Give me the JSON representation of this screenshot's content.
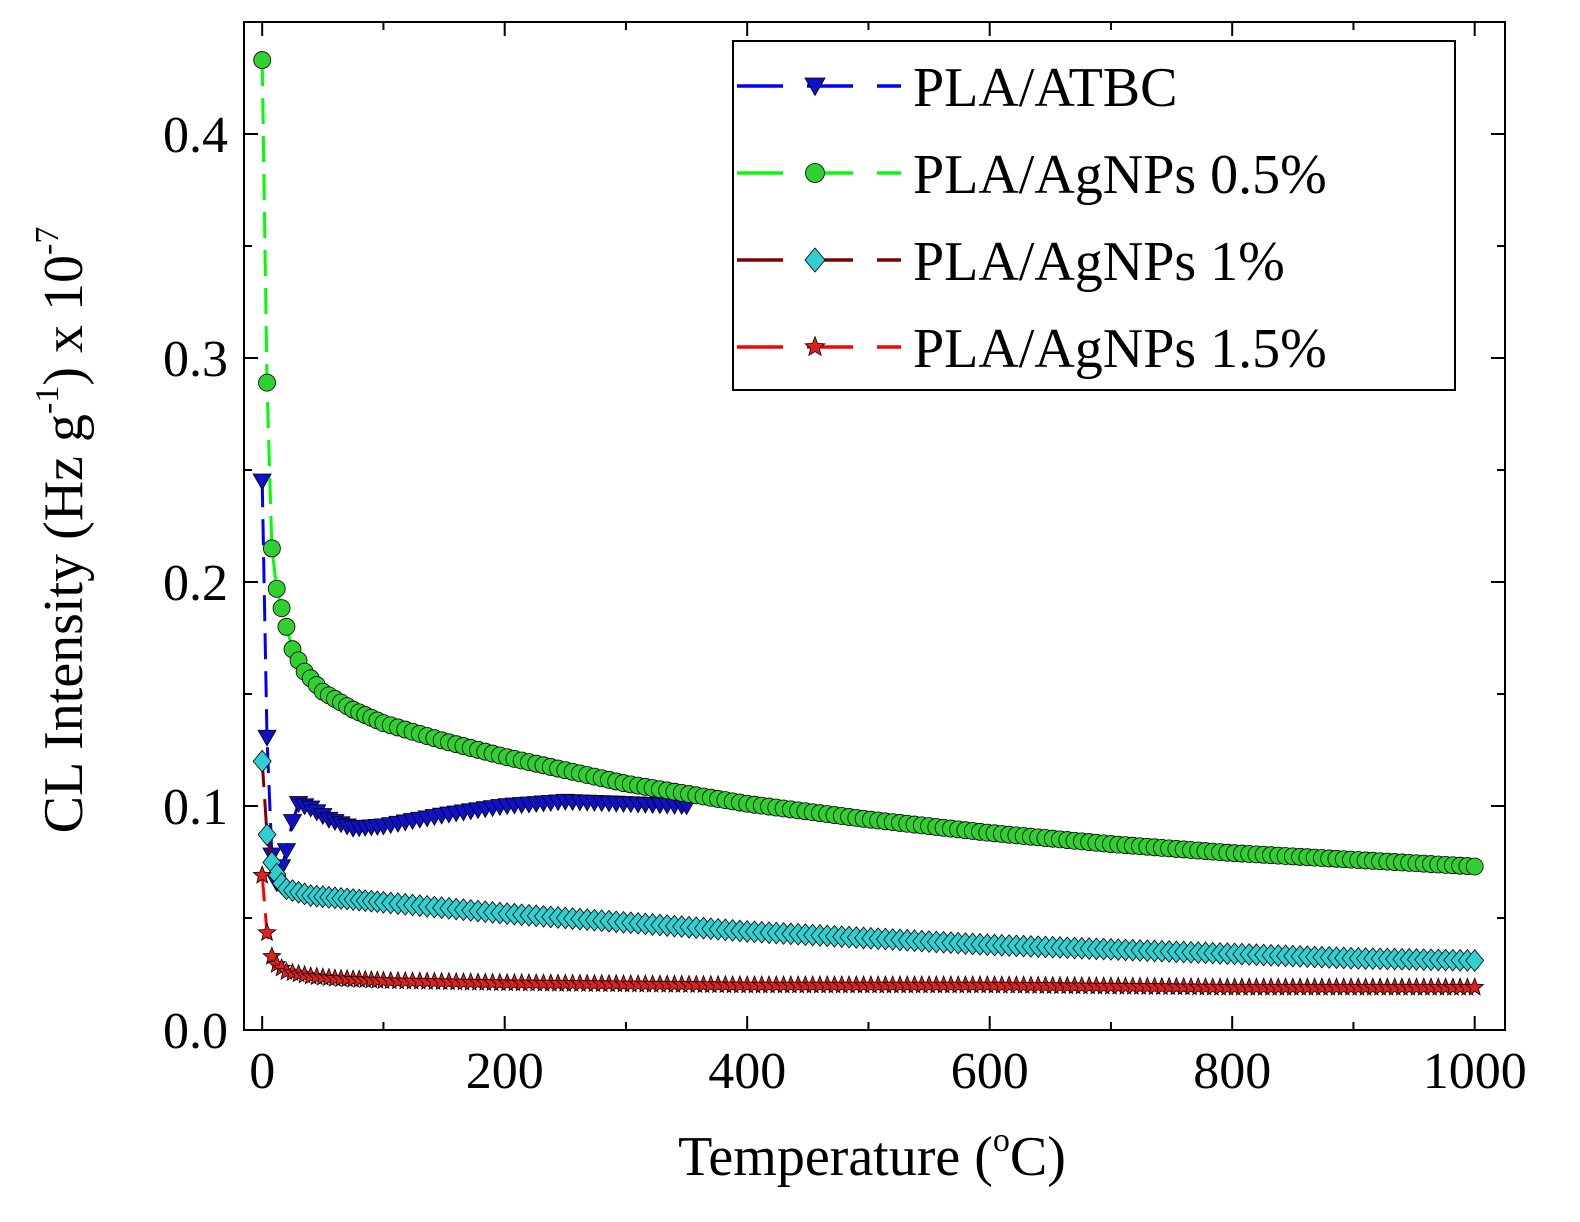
{
  "chart_data": {
    "type": "scatter",
    "title": "",
    "xlabel": {
      "main": "Temperature (",
      "sup": "o",
      "tail": "C)"
    },
    "ylabel": {
      "a": "CL Intensity (Hz g",
      "sup1": "-1",
      "b": ") x 10",
      "sup2": "-7"
    },
    "xlim": [
      -15,
      1025
    ],
    "ylim": [
      0.0,
      0.45
    ],
    "xticks": [
      0,
      200,
      400,
      600,
      800,
      1000
    ],
    "xtick_labels": [
      "0",
      "200",
      "400",
      "600",
      "800",
      "1000"
    ],
    "yticks": [
      0.0,
      0.1,
      0.2,
      0.3,
      0.4
    ],
    "ytick_labels": [
      "0.0",
      "0.1",
      "0.2",
      "0.3",
      "0.4"
    ],
    "legend_position": "top-right",
    "grid": false,
    "series": [
      {
        "name": "PLA/ATBC",
        "marker": "triangle-down",
        "marker_color": "#1010c8",
        "line_color": "#0000ff",
        "x_range": [
          0,
          350
        ],
        "anchors": [
          [
            0,
            0.245
          ],
          [
            5,
            0.102
          ],
          [
            10,
            0.062
          ],
          [
            20,
            0.08
          ],
          [
            25,
            0.093
          ],
          [
            30,
            0.101
          ],
          [
            40,
            0.099
          ],
          [
            55,
            0.094
          ],
          [
            75,
            0.09
          ],
          [
            100,
            0.091
          ],
          [
            150,
            0.096
          ],
          [
            200,
            0.1
          ],
          [
            250,
            0.102
          ],
          [
            300,
            0.101
          ],
          [
            350,
            0.1
          ]
        ]
      },
      {
        "name": "PLA/AgNPs 0.5%",
        "marker": "circle",
        "marker_color": "#30d030",
        "line_color": "#00ff00",
        "x_range": [
          0,
          1000
        ],
        "anchors": [
          [
            0,
            0.433
          ],
          [
            5,
            0.253
          ],
          [
            8,
            0.215
          ],
          [
            12,
            0.197
          ],
          [
            18,
            0.184
          ],
          [
            25,
            0.17
          ],
          [
            35,
            0.16
          ],
          [
            50,
            0.151
          ],
          [
            75,
            0.143
          ],
          [
            100,
            0.137
          ],
          [
            150,
            0.129
          ],
          [
            200,
            0.122
          ],
          [
            300,
            0.11
          ],
          [
            400,
            0.101
          ],
          [
            500,
            0.094
          ],
          [
            600,
            0.088
          ],
          [
            700,
            0.083
          ],
          [
            800,
            0.079
          ],
          [
            900,
            0.076
          ],
          [
            1000,
            0.073
          ]
        ]
      },
      {
        "name": "PLA/AgNPs 1%",
        "marker": "diamond",
        "marker_color": "#30d0d0",
        "line_color": "#800000",
        "x_range": [
          0,
          1000
        ],
        "anchors": [
          [
            0,
            0.12
          ],
          [
            5,
            0.079
          ],
          [
            10,
            0.072
          ],
          [
            15,
            0.066
          ],
          [
            20,
            0.063
          ],
          [
            40,
            0.06
          ],
          [
            60,
            0.059
          ],
          [
            100,
            0.057
          ],
          [
            200,
            0.052
          ],
          [
            300,
            0.048
          ],
          [
            400,
            0.044
          ],
          [
            500,
            0.041
          ],
          [
            600,
            0.038
          ],
          [
            700,
            0.036
          ],
          [
            800,
            0.034
          ],
          [
            900,
            0.032
          ],
          [
            1000,
            0.031
          ]
        ]
      },
      {
        "name": "PLA/AgNPs 1.5%",
        "marker": "star",
        "marker_color": "#e02020",
        "line_color": "#ff0000",
        "x_range": [
          0,
          1000
        ],
        "anchors": [
          [
            0,
            0.069
          ],
          [
            5,
            0.037
          ],
          [
            10,
            0.03
          ],
          [
            20,
            0.026
          ],
          [
            40,
            0.024
          ],
          [
            60,
            0.023
          ],
          [
            100,
            0.022
          ],
          [
            200,
            0.021
          ],
          [
            400,
            0.02
          ],
          [
            600,
            0.02
          ],
          [
            800,
            0.019
          ],
          [
            1000,
            0.019
          ]
        ]
      }
    ]
  }
}
